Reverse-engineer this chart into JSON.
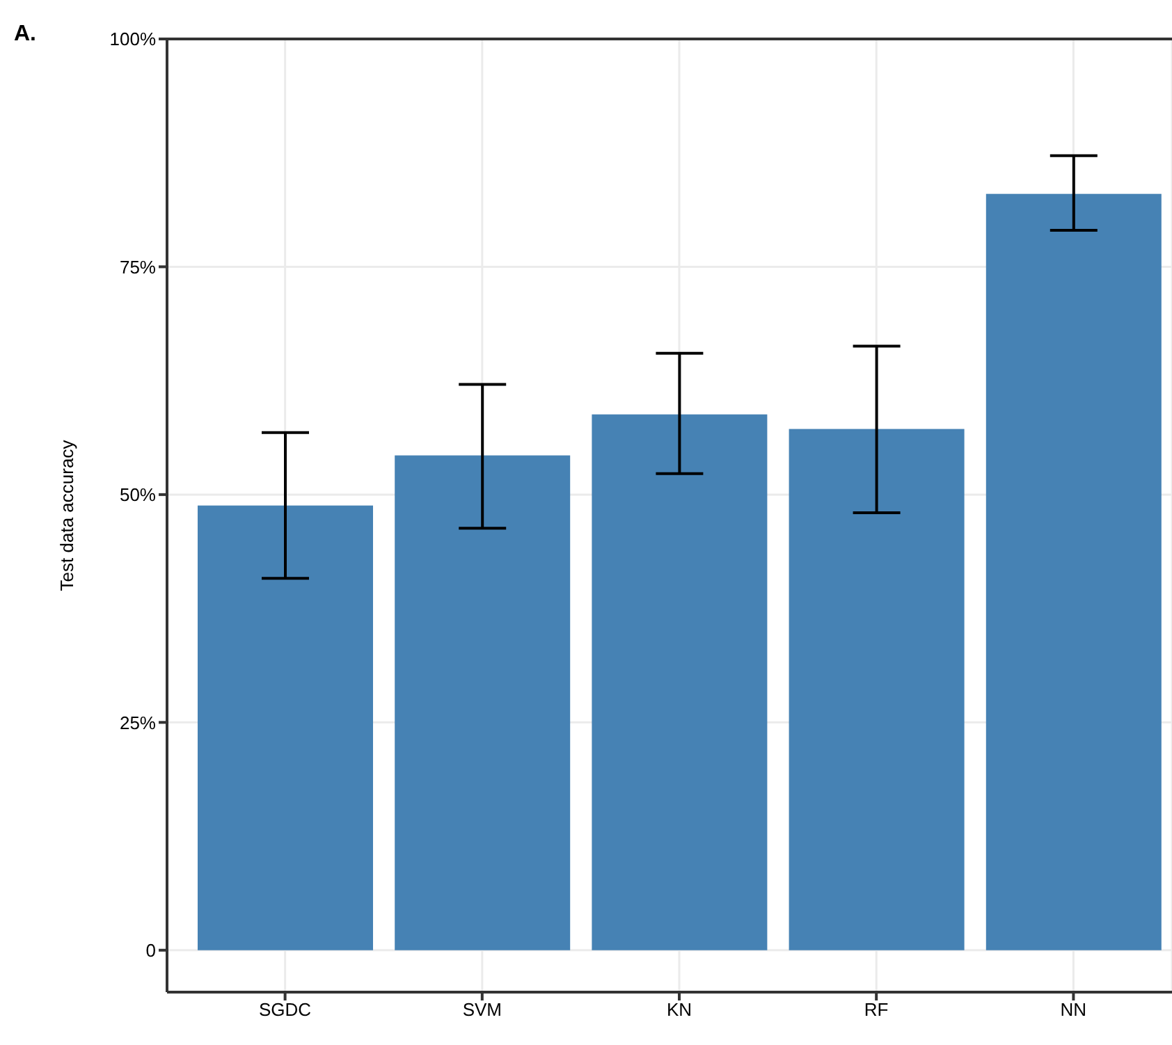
{
  "chart_data": {
    "type": "bar",
    "title": "A.",
    "ylabel": "Test data accuracy",
    "categories": [
      "SGDC",
      "SVM",
      "KN",
      "RF",
      "NN"
    ],
    "values": [
      48.8,
      54.3,
      58.8,
      57.2,
      83.0
    ],
    "errors": [
      [
        40.8,
        56.8
      ],
      [
        46.3,
        62.1
      ],
      [
        52.3,
        65.5
      ],
      [
        48.0,
        66.3
      ],
      [
        79.0,
        87.2
      ]
    ],
    "color": "#4682b4",
    "ylim": [
      -4.6,
      100
    ],
    "yticks": [
      {
        "value": 0,
        "label": "0"
      },
      {
        "value": 25,
        "label": "25%"
      },
      {
        "value": 50,
        "label": "50%"
      },
      {
        "value": 75,
        "label": "75%"
      },
      {
        "value": 100,
        "label": "100%"
      }
    ],
    "grid": true
  }
}
